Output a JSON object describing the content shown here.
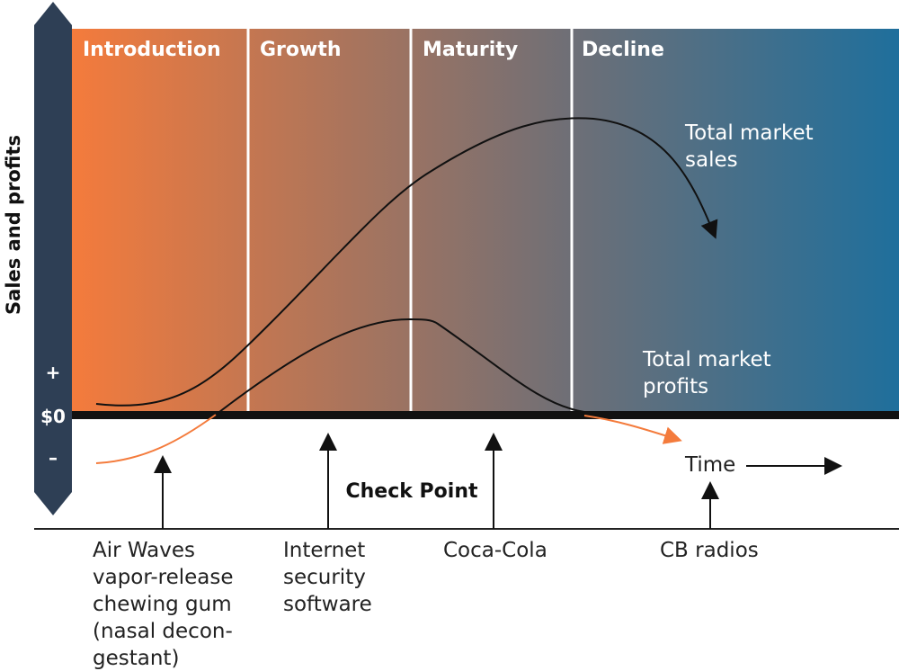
{
  "axis": {
    "label": "Sales and profits",
    "plus": "+",
    "zero": "$0",
    "minus": "–"
  },
  "stages": [
    "Introduction",
    "Growth",
    "Maturity",
    "Decline"
  ],
  "curves": {
    "sales": [
      "Total market",
      "sales"
    ],
    "profits": [
      "Total market",
      "profits"
    ]
  },
  "time": "Time",
  "checkpoint": {
    "title": "Check Point",
    "examples": [
      [
        "Air Waves",
        "vapor-release",
        "chewing gum",
        "(nasal decon-",
        "gestant)"
      ],
      [
        "Internet",
        "security",
        "software"
      ],
      [
        "Coca-Cola"
      ],
      [
        "CB radios"
      ]
    ]
  }
}
